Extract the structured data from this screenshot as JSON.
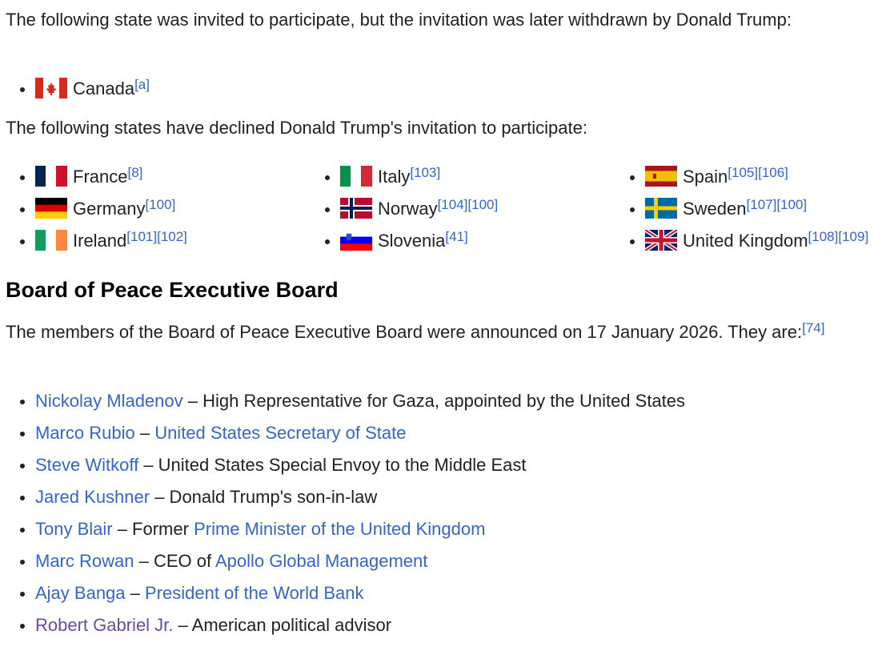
{
  "intro_withdrawn": "The following state was invited to participate, but the invitation was later withdrawn by Donald Trump:",
  "withdrawn": [
    {
      "name": "Canada",
      "flag": "canada",
      "refs": [
        "[a]"
      ]
    }
  ],
  "intro_declined": "The following states have declined Donald Trump's invitation to participate:",
  "declined": [
    {
      "name": "France",
      "flag": "france",
      "refs": [
        "[8]"
      ]
    },
    {
      "name": "Italy",
      "flag": "italy",
      "refs": [
        "[103]"
      ]
    },
    {
      "name": "Spain",
      "flag": "spain",
      "refs": [
        "[105]",
        "[106]"
      ]
    },
    {
      "name": "Germany",
      "flag": "germany",
      "refs": [
        "[100]"
      ]
    },
    {
      "name": "Norway",
      "flag": "norway",
      "refs": [
        "[104]",
        "[100]"
      ]
    },
    {
      "name": "Sweden",
      "flag": "sweden",
      "refs": [
        "[107]",
        "[100]"
      ]
    },
    {
      "name": "Ireland",
      "flag": "ireland",
      "refs": [
        "[101]",
        "[102]"
      ]
    },
    {
      "name": "Slovenia",
      "flag": "slovenia",
      "refs": [
        "[41]"
      ]
    },
    {
      "name": "United Kingdom",
      "flag": "uk",
      "refs": [
        "[108]",
        "[109]"
      ]
    }
  ],
  "board_heading": "Board of Peace Executive Board",
  "board_intro": "The members of the Board of Peace Executive Board were announced on 17 January 2026. They are:",
  "board_intro_ref": "[74]",
  "members": [
    {
      "parts": [
        {
          "t": "Nickolay Mladenov",
          "link": true
        },
        {
          "t": " – High Representative for Gaza, appointed by the United States"
        }
      ]
    },
    {
      "parts": [
        {
          "t": "Marco Rubio",
          "link": true
        },
        {
          "t": " – "
        },
        {
          "t": "United States Secretary of State",
          "link": true
        }
      ]
    },
    {
      "parts": [
        {
          "t": "Steve Witkoff",
          "link": true
        },
        {
          "t": " – United States Special Envoy to the Middle East"
        }
      ]
    },
    {
      "parts": [
        {
          "t": "Jared Kushner",
          "link": true
        },
        {
          "t": " – Donald Trump's son-in-law"
        }
      ]
    },
    {
      "parts": [
        {
          "t": "Tony Blair",
          "link": true
        },
        {
          "t": " – Former "
        },
        {
          "t": "Prime Minister of the United Kingdom",
          "link": true
        }
      ]
    },
    {
      "parts": [
        {
          "t": "Marc Rowan",
          "link": true
        },
        {
          "t": " – CEO of "
        },
        {
          "t": "Apollo Global Management",
          "link": true
        }
      ]
    },
    {
      "parts": [
        {
          "t": "Ajay Banga",
          "link": true
        },
        {
          "t": " – "
        },
        {
          "t": "President of the World Bank",
          "link": true
        }
      ]
    },
    {
      "parts": [
        {
          "t": "Robert Gabriel Jr.",
          "link": true,
          "visited": true
        },
        {
          "t": " – American political advisor"
        }
      ]
    }
  ],
  "colors": {
    "link": "#3366cc",
    "visited_link": "#6b4ba1",
    "text": "#202122"
  }
}
